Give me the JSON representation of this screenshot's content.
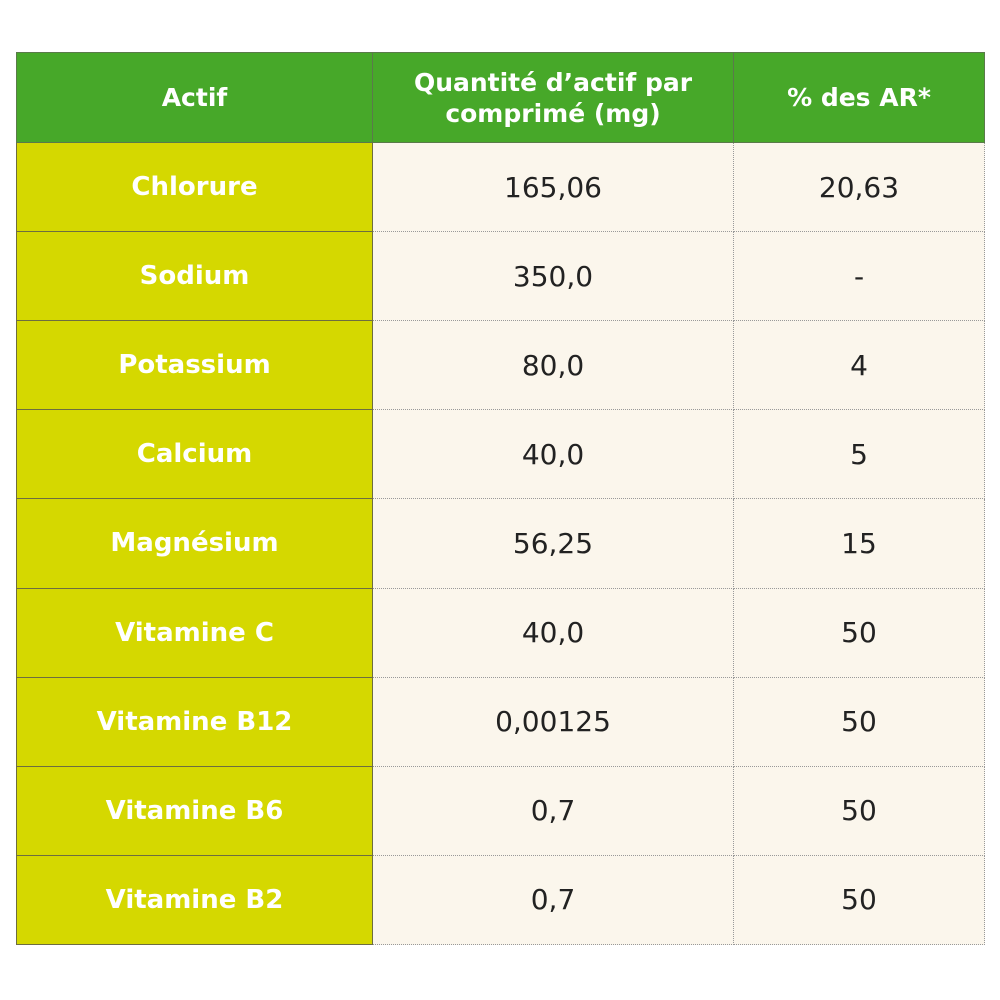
{
  "colors": {
    "header": "#47a829",
    "first_column": "#d5d800",
    "body": "#fbf6ec"
  },
  "headers": [
    "Actif",
    "Quantité d’actif par comprimé (mg)",
    "% des AR*"
  ],
  "rows": [
    [
      "Chlorure",
      "165,06",
      "20,63"
    ],
    [
      "Sodium",
      "350,0",
      "-"
    ],
    [
      "Potassium",
      "80,0",
      "4"
    ],
    [
      "Calcium",
      "40,0",
      "5"
    ],
    [
      "Magnésium",
      "56,25",
      "15"
    ],
    [
      "Vitamine C",
      "40,0",
      "50"
    ],
    [
      "Vitamine B12",
      "0,00125",
      "50"
    ],
    [
      "Vitamine B6",
      "0,7",
      "50"
    ],
    [
      "Vitamine B2",
      "0,7",
      "50"
    ]
  ]
}
